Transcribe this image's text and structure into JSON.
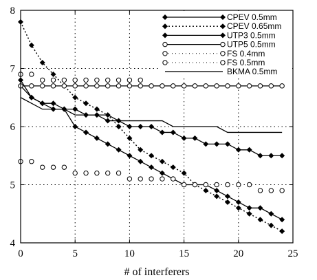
{
  "chart_data": {
    "type": "line",
    "title": "",
    "xlabel": "# of interferers",
    "ylabel": "",
    "xlim": [
      0,
      25
    ],
    "ylim": [
      4,
      8
    ],
    "xticks": [
      "0",
      "5",
      "10",
      "15",
      "20",
      "25"
    ],
    "yticks": [
      "4",
      "5",
      "6",
      "7",
      "8"
    ],
    "grid": true,
    "grid_style": "dotted",
    "legend_position": "top-right",
    "series": [
      {
        "name": "CPEV 0.5mm",
        "marker": "filled-diamond",
        "line": "solid",
        "x": [
          0,
          1,
          2,
          3,
          4,
          5,
          6,
          7,
          8,
          9,
          10,
          11,
          12,
          13,
          14,
          15,
          16,
          17,
          18,
          19,
          20,
          21,
          22,
          23,
          24
        ],
        "y": [
          6.7,
          6.5,
          6.4,
          6.3,
          6.3,
          6.0,
          5.9,
          5.8,
          5.7,
          5.6,
          5.5,
          5.4,
          5.3,
          5.2,
          5.1,
          5.0,
          5.0,
          5.0,
          4.9,
          4.8,
          4.7,
          4.6,
          4.6,
          4.5,
          4.4
        ]
      },
      {
        "name": "CPEV 0.65mm",
        "marker": "filled-diamond",
        "line": "dotted",
        "x": [
          0,
          1,
          2,
          3,
          4,
          5,
          6,
          7,
          8,
          9,
          10,
          11,
          12,
          13,
          14,
          15,
          16,
          17,
          18,
          19,
          20,
          21,
          22,
          23,
          24
        ],
        "y": [
          7.8,
          7.4,
          7.1,
          6.9,
          6.7,
          6.5,
          6.4,
          6.3,
          6.2,
          6.0,
          5.8,
          5.6,
          5.5,
          5.4,
          5.3,
          5.2,
          5.0,
          4.9,
          4.8,
          4.7,
          4.6,
          4.5,
          4.4,
          4.3,
          4.2
        ]
      },
      {
        "name": "UTP3 0.5mm",
        "marker": "filled-diamond",
        "line": "solid",
        "x": [
          0,
          1,
          2,
          3,
          4,
          5,
          6,
          7,
          8,
          9,
          10,
          11,
          12,
          13,
          14,
          15,
          16,
          17,
          18,
          19,
          20,
          21,
          22,
          23,
          24
        ],
        "y": [
          6.8,
          6.5,
          6.4,
          6.4,
          6.3,
          6.3,
          6.2,
          6.2,
          6.1,
          6.1,
          6.0,
          6.0,
          6.0,
          5.9,
          5.9,
          5.8,
          5.8,
          5.7,
          5.7,
          5.7,
          5.6,
          5.6,
          5.5,
          5.5,
          5.5
        ]
      },
      {
        "name": "UTP5 0.5mm",
        "marker": "open-circle",
        "line": "solid",
        "x": [
          0,
          1,
          2,
          3,
          4,
          5,
          6,
          7,
          8,
          9,
          10,
          11,
          12,
          13,
          14,
          15,
          16,
          17,
          18,
          19,
          20,
          21,
          22,
          23,
          24
        ],
        "y": [
          6.7,
          6.7,
          6.7,
          6.7,
          6.7,
          6.7,
          6.7,
          6.7,
          6.7,
          6.7,
          6.7,
          6.7,
          6.7,
          6.7,
          6.7,
          6.7,
          6.7,
          6.7,
          6.7,
          6.7,
          6.7,
          6.7,
          6.7,
          6.7,
          6.7
        ]
      },
      {
        "name": "FS 0.4mm",
        "marker": "open-circle",
        "line": "none",
        "x": [
          0,
          1,
          2,
          3,
          4,
          5,
          6,
          7,
          8,
          9,
          10,
          11,
          12,
          13,
          14,
          15,
          16,
          17,
          18,
          19,
          20,
          21,
          22,
          23,
          24
        ],
        "y": [
          5.4,
          5.4,
          5.3,
          5.3,
          5.3,
          5.2,
          5.2,
          5.2,
          5.2,
          5.2,
          5.1,
          5.1,
          5.1,
          5.1,
          5.1,
          5.0,
          5.0,
          5.0,
          5.0,
          5.0,
          5.0,
          5.0,
          4.9,
          4.9,
          4.9
        ]
      },
      {
        "name": "FS 0.5mm",
        "marker": "open-circle",
        "line": "none",
        "x": [
          0,
          1,
          2,
          3,
          4,
          5,
          6,
          7,
          8,
          9,
          10,
          11
        ],
        "y": [
          6.9,
          6.9,
          6.8,
          6.8,
          6.8,
          6.8,
          6.8,
          6.8,
          6.8,
          6.8,
          6.8,
          6.8
        ]
      },
      {
        "name": "BKMA 0.5mm",
        "marker": "none",
        "line": "solid",
        "x": [
          0,
          1,
          2,
          3,
          4,
          5,
          6,
          7,
          8,
          9,
          10,
          11,
          12,
          13,
          14,
          15,
          16,
          17,
          18,
          19,
          20,
          21,
          22,
          23,
          24
        ],
        "y": [
          6.5,
          6.4,
          6.3,
          6.3,
          6.3,
          6.2,
          6.2,
          6.2,
          6.2,
          6.1,
          6.1,
          6.1,
          6.1,
          6.1,
          6.0,
          6.0,
          6.0,
          6.0,
          6.0,
          5.9,
          5.9,
          5.9,
          5.9,
          5.9,
          5.9
        ]
      }
    ]
  }
}
